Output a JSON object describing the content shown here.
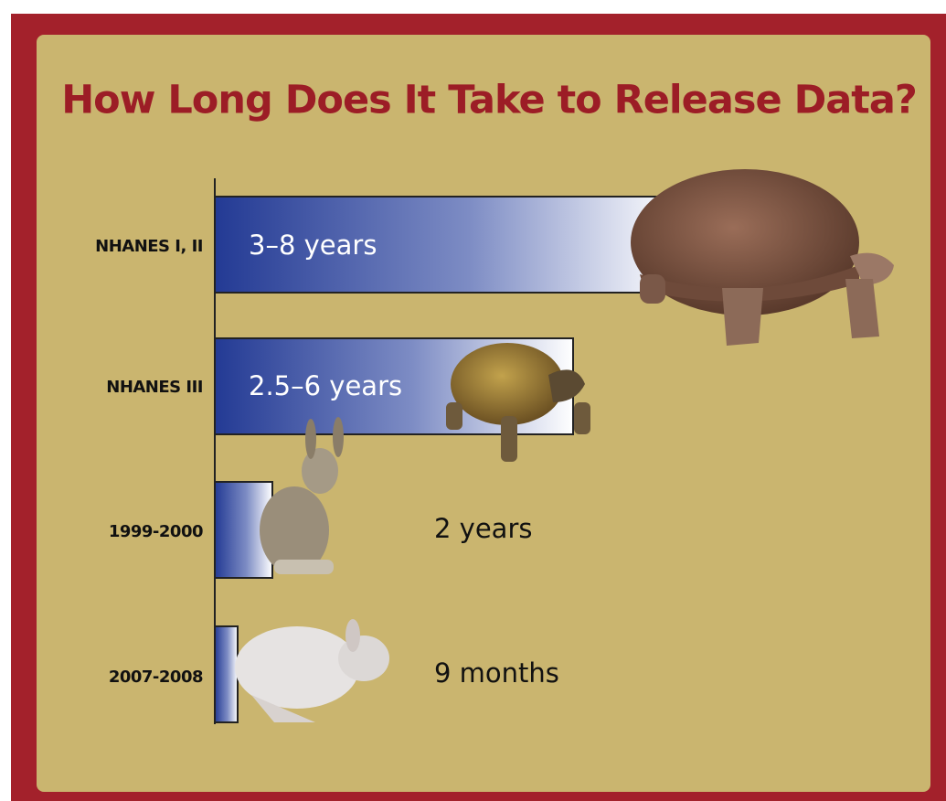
{
  "title": "How Long Does It Take to Release Data?",
  "rows": [
    {
      "label": "NHANES I, II",
      "duration": "3–8 years"
    },
    {
      "label": "NHANES III",
      "duration": "2.5–6 years"
    },
    {
      "label": "1999-2000",
      "duration": "2 years"
    },
    {
      "label": "2007-2008",
      "duration": "9 months"
    }
  ]
}
